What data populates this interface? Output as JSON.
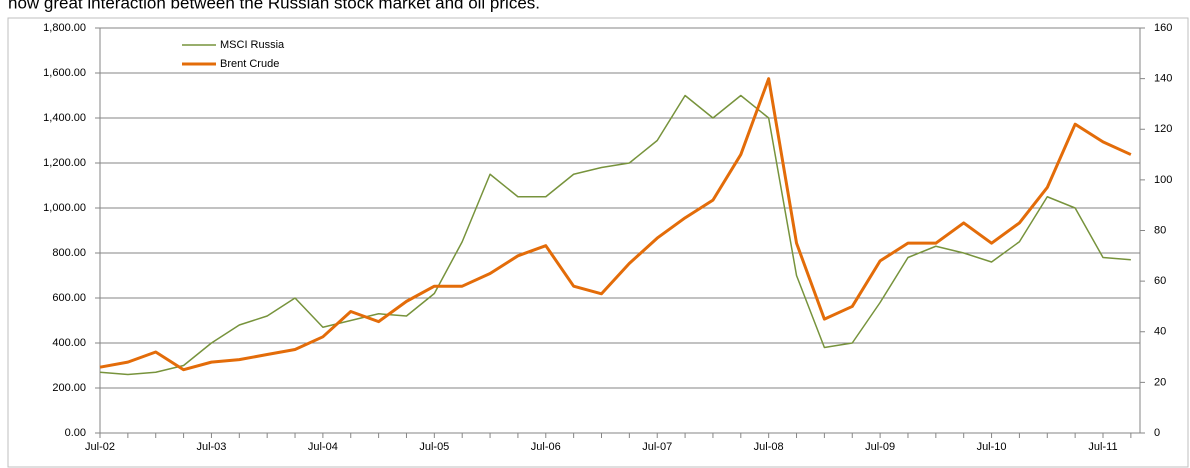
{
  "chart_data": {
    "type": "line",
    "title": "how great interaction between the Russian stock market and oil prices.",
    "categories": [
      "Jul-02",
      null,
      null,
      null,
      "Jul-03",
      null,
      null,
      null,
      "Jul-04",
      null,
      null,
      null,
      "Jul-05",
      null,
      null,
      null,
      "Jul-06",
      null,
      null,
      null,
      "Jul-07",
      null,
      null,
      null,
      "Jul-08",
      null,
      null,
      null,
      "Jul-09",
      null,
      null,
      null,
      "Jul-10",
      null,
      null,
      null,
      "Jul-11",
      null
    ],
    "series": [
      {
        "name": "MSCI Russia",
        "color": "#77933c",
        "axis": "y",
        "values": [
          270,
          260,
          270,
          300,
          400,
          480,
          520,
          600,
          470,
          500,
          530,
          520,
          620,
          850,
          1150,
          1050,
          1050,
          1150,
          1180,
          1200,
          1300,
          1500,
          1400,
          1500,
          1400,
          700,
          380,
          400,
          580,
          780,
          830,
          800,
          760,
          850,
          1050,
          1000,
          780,
          770
        ]
      },
      {
        "name": "Brent Crude",
        "color": "#e36c09",
        "axis": "y2",
        "values": [
          26,
          28,
          32,
          25,
          28,
          29,
          31,
          33,
          38,
          48,
          44,
          52,
          58,
          58,
          63,
          70,
          74,
          58,
          55,
          67,
          77,
          85,
          92,
          110,
          140,
          75,
          45,
          50,
          68,
          75,
          75,
          83,
          75,
          83,
          97,
          122,
          115,
          110
        ]
      }
    ],
    "ylim": [
      0,
      1800
    ],
    "yticks": [
      {
        "value": 0,
        "label": "0.00"
      },
      {
        "value": 200,
        "label": "200.00"
      },
      {
        "value": 400,
        "label": "400.00"
      },
      {
        "value": 600,
        "label": "600.00"
      },
      {
        "value": 800,
        "label": "800.00"
      },
      {
        "value": 1000,
        "label": "1,000.00"
      },
      {
        "value": 1200,
        "label": "1,200.00"
      },
      {
        "value": 1400,
        "label": "1,400.00"
      },
      {
        "value": 1600,
        "label": "1,600.00"
      },
      {
        "value": 1800,
        "label": "1,800.00"
      }
    ],
    "y2lim": [
      0,
      160
    ],
    "y2ticks": [
      0,
      20,
      40,
      60,
      80,
      100,
      120,
      140,
      160
    ],
    "grid": true
  }
}
